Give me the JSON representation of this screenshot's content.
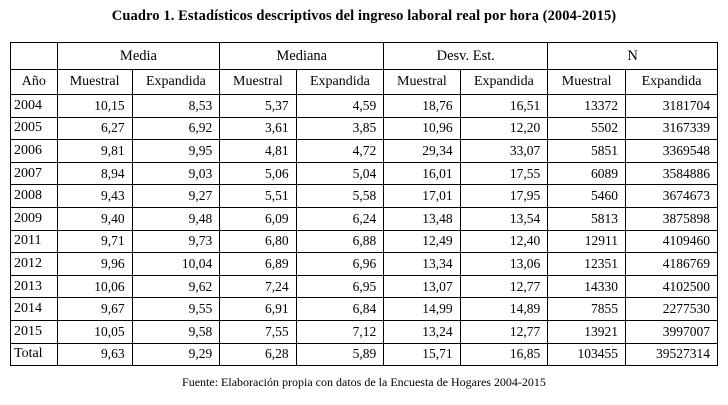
{
  "title": "Cuadro 1. Estadísticos descriptivos del ingreso laboral real por hora (2004-2015)",
  "footer": "Fuente: Elaboración propia con datos de la Encuesta de Hogares 2004-2015",
  "table": {
    "col_widths_pct": [
      6.6,
      10.6,
      12.4,
      10.8,
      12.4,
      10.8,
      12.4,
      11.0,
      13.0
    ],
    "group_headers": [
      {
        "label": "",
        "span": 1
      },
      {
        "label": "Media",
        "span": 2
      },
      {
        "label": "Mediana",
        "span": 2
      },
      {
        "label": "Desv. Est.",
        "span": 2
      },
      {
        "label": "N",
        "span": 2
      }
    ],
    "sub_headers": [
      "Año",
      "Muestral",
      "Expandida",
      "Muestral",
      "Expandida",
      "Muestral",
      "Expandida",
      "Muestral",
      "Expandida"
    ],
    "rows": [
      [
        "2004",
        "10,15",
        "8,53",
        "5,37",
        "4,59",
        "18,76",
        "16,51",
        "13372",
        "3181704"
      ],
      [
        "2005",
        "6,27",
        "6,92",
        "3,61",
        "3,85",
        "10,96",
        "12,20",
        "5502",
        "3167339"
      ],
      [
        "2006",
        "9,81",
        "9,95",
        "4,81",
        "4,72",
        "29,34",
        "33,07",
        "5851",
        "3369548"
      ],
      [
        "2007",
        "8,94",
        "9,03",
        "5,06",
        "5,04",
        "16,01",
        "17,55",
        "6089",
        "3584886"
      ],
      [
        "2008",
        "9,43",
        "9,27",
        "5,51",
        "5,58",
        "17,01",
        "17,95",
        "5460",
        "3674673"
      ],
      [
        "2009",
        "9,40",
        "9,48",
        "6,09",
        "6,24",
        "13,48",
        "13,54",
        "5813",
        "3875898"
      ],
      [
        "2011",
        "9,71",
        "9,73",
        "6,80",
        "6,88",
        "12,49",
        "12,40",
        "12911",
        "4109460"
      ],
      [
        "2012",
        "9,96",
        "10,04",
        "6,89",
        "6,96",
        "13,34",
        "13,06",
        "12351",
        "4186769"
      ],
      [
        "2013",
        "10,06",
        "9,62",
        "7,24",
        "6,95",
        "13,07",
        "12,77",
        "14330",
        "4102500"
      ],
      [
        "2014",
        "9,67",
        "9,55",
        "6,91",
        "6,84",
        "14,99",
        "14,89",
        "7855",
        "2277530"
      ],
      [
        "2015",
        "10,05",
        "9,58",
        "7,55",
        "7,12",
        "13,24",
        "12,77",
        "13921",
        "3997007"
      ],
      [
        "Total",
        "9,63",
        "9,29",
        "6,28",
        "5,89",
        "15,71",
        "16,85",
        "103455",
        "39527314"
      ]
    ]
  }
}
